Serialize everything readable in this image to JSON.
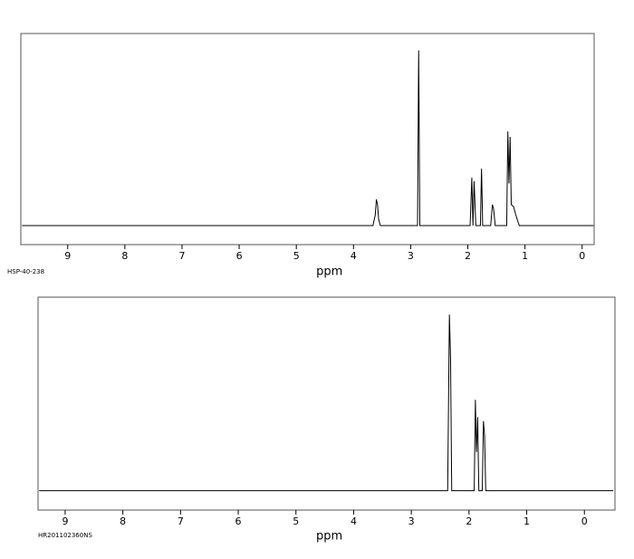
{
  "chart_data": [
    {
      "type": "line",
      "annotation": "HSP-40-238",
      "x_label": "ppm",
      "color": "#000000",
      "xlim": [
        9.82,
        -0.21
      ],
      "ylim": [
        -9,
        91
      ],
      "xticks": [
        9,
        8,
        7,
        6,
        5,
        4,
        3,
        2,
        1,
        0
      ],
      "x": [
        9.8,
        3.66,
        3.62,
        3.6,
        3.58,
        3.56,
        3.53,
        2.88,
        2.86,
        2.84,
        1.96,
        1.93,
        1.91,
        1.89,
        1.86,
        1.78,
        1.76,
        1.74,
        1.6,
        1.57,
        1.55,
        1.52,
        1.32,
        1.3,
        1.28,
        1.26,
        1.24,
        1.2,
        1.16,
        1.1,
        -0.2
      ],
      "values": [
        0,
        0,
        5,
        12.4,
        10,
        3,
        0,
        0,
        83,
        0,
        0,
        22.7,
        0,
        21,
        0,
        0,
        27,
        0,
        0,
        10,
        8,
        0,
        0,
        44.6,
        20,
        42,
        10,
        9,
        5,
        0,
        0
      ]
    },
    {
      "type": "line",
      "annotation": "HR201102360NS",
      "x_label": "ppm",
      "color": "#000000",
      "xlim": [
        9.47,
        -0.53
      ],
      "ylim": [
        -10,
        100
      ],
      "xticks": [
        9,
        8,
        7,
        6,
        5,
        4,
        3,
        2,
        1,
        0
      ],
      "x": [
        9.45,
        2.37,
        2.34,
        2.32,
        2.3,
        1.91,
        1.89,
        1.87,
        1.85,
        1.83,
        1.77,
        1.75,
        1.73,
        1.71,
        -0.5
      ],
      "values": [
        0,
        0,
        91,
        68,
        0,
        0,
        47,
        20,
        38,
        0,
        0,
        36,
        28.5,
        0,
        0
      ]
    }
  ]
}
